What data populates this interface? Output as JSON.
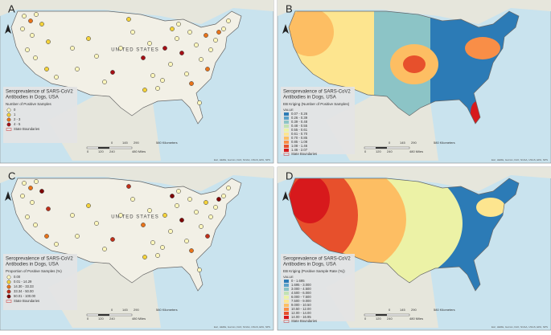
{
  "country_label": "UNITED STATES",
  "attribution": "Esri, HERE, Garmin, FAO, NOAA, USGS, EPA, NPS",
  "scale_miles": [
    "0",
    "120",
    "240",
    "480 Miles"
  ],
  "scale_km": [
    "0",
    "145",
    "290",
    "580 Kilometers"
  ],
  "panels": [
    {
      "label": "A",
      "kind": "points",
      "title": [
        "Seroprevalence of SARS-CoV2",
        "Antibodies in Dogs, USA"
      ],
      "subtitle": "Number of Positive Samples",
      "items": [
        {
          "label": "0",
          "color": "#fff7bc"
        },
        {
          "label": "1",
          "color": "#f4d23a"
        },
        {
          "label": "2 - 3",
          "color": "#e8731a"
        },
        {
          "label": "4 - 5",
          "color": "#a50f15"
        },
        {
          "label": "State Boundaries",
          "color": "none"
        }
      ]
    },
    {
      "label": "B",
      "kind": "krig",
      "title": [
        "Seroprevalence of SARS-CoV2",
        "Antibodies in Dogs, USA"
      ],
      "subtitle": "EB Kriging (Number of Positive Samples)",
      "heading": "VALUE",
      "items": [
        {
          "label": "0.07 - 0.26",
          "color": "#2c7bb6"
        },
        {
          "label": "0.26 - 0.39",
          "color": "#5aa1c9"
        },
        {
          "label": "0.39 - 0.48",
          "color": "#8cc4c6"
        },
        {
          "label": "0.48 - 0.55",
          "color": "#c2e2b3"
        },
        {
          "label": "0.55 - 0.61",
          "color": "#ecf2a6"
        },
        {
          "label": "0.61 - 0.70",
          "color": "#fde58f"
        },
        {
          "label": "0.70 - 0.85",
          "color": "#fdbe63"
        },
        {
          "label": "0.85 - 1.08",
          "color": "#f98e47"
        },
        {
          "label": "1.08 - 1.46",
          "color": "#e7502c"
        },
        {
          "label": "1.46 - 2.07",
          "color": "#d7191c"
        },
        {
          "label": "State Boundaries",
          "color": "none"
        }
      ]
    },
    {
      "label": "C",
      "kind": "points",
      "title": [
        "Seroprevalence of SARS-CoV2",
        "Antibodies in Dogs, USA"
      ],
      "subtitle": "Proportion of Positive Samples (%)",
      "items": [
        {
          "label": "0.00",
          "color": "#fff7bc"
        },
        {
          "label": "0.01 - 14.29",
          "color": "#f4d23a"
        },
        {
          "label": "14.30 - 33.33",
          "color": "#e8731a"
        },
        {
          "label": "33.34 - 50.00",
          "color": "#c0301a"
        },
        {
          "label": "50.01 - 100.00",
          "color": "#7f0000"
        },
        {
          "label": "State Boundaries",
          "color": "none"
        }
      ]
    },
    {
      "label": "D",
      "kind": "krig",
      "title": [
        "Seroprevalence of SARS-CoV2",
        "Antibodies in Dogs, USA"
      ],
      "subtitle": "EB Kriging (Positive Sample Rate (%))",
      "heading": "VALUE",
      "items": [
        {
          "label": "0 - 1.695",
          "color": "#2c7bb6"
        },
        {
          "label": "1.695 - 3.000",
          "color": "#5aa1c9"
        },
        {
          "label": "3.000 - 4.500",
          "color": "#8cc4c6"
        },
        {
          "label": "4.500 - 6.000",
          "color": "#c2e2b3"
        },
        {
          "label": "6.000 - 7.500",
          "color": "#ecf2a6"
        },
        {
          "label": "7.500 - 9.000",
          "color": "#fde58f"
        },
        {
          "label": "9.000 - 10.50",
          "color": "#fdbe63"
        },
        {
          "label": "10.50 - 12.00",
          "color": "#f98e47"
        },
        {
          "label": "12.00 - 14.00",
          "color": "#e7502c"
        },
        {
          "label": "14.00 - 16.95",
          "color": "#d7191c"
        },
        {
          "label": "State Boundaries",
          "color": "none"
        }
      ]
    }
  ]
}
